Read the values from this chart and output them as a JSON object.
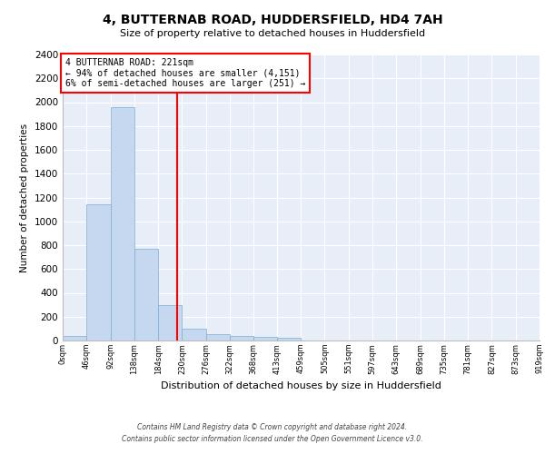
{
  "title": "4, BUTTERNAB ROAD, HUDDERSFIELD, HD4 7AH",
  "subtitle": "Size of property relative to detached houses in Huddersfield",
  "xlabel": "Distribution of detached houses by size in Huddersfield",
  "ylabel": "Number of detached properties",
  "bar_values": [
    35,
    1140,
    1960,
    770,
    300,
    100,
    50,
    40,
    30,
    20,
    0,
    0,
    0,
    0,
    0,
    0,
    0,
    0,
    0,
    0
  ],
  "bin_edges": [
    0,
    46,
    92,
    138,
    184,
    230,
    276,
    322,
    368,
    413,
    459,
    505,
    551,
    597,
    643,
    689,
    735,
    781,
    827,
    873,
    919
  ],
  "tick_labels": [
    "0sqm",
    "46sqm",
    "92sqm",
    "138sqm",
    "184sqm",
    "230sqm",
    "276sqm",
    "322sqm",
    "368sqm",
    "413sqm",
    "459sqm",
    "505sqm",
    "551sqm",
    "597sqm",
    "643sqm",
    "689sqm",
    "735sqm",
    "781sqm",
    "827sqm",
    "873sqm",
    "919sqm"
  ],
  "property_size": 221,
  "annotation_text": "4 BUTTERNAB ROAD: 221sqm\n← 94% of detached houses are smaller (4,151)\n6% of semi-detached houses are larger (251) →",
  "bar_color": "#c5d8f0",
  "bar_edge_color": "#7aafd4",
  "vline_color": "red",
  "annotation_box_color": "white",
  "annotation_box_edge": "red",
  "axes_background": "#e8eef8",
  "ylim": [
    0,
    2400
  ],
  "yticks": [
    0,
    200,
    400,
    600,
    800,
    1000,
    1200,
    1400,
    1600,
    1800,
    2000,
    2200,
    2400
  ],
  "footer_line1": "Contains HM Land Registry data © Crown copyright and database right 2024.",
  "footer_line2": "Contains public sector information licensed under the Open Government Licence v3.0."
}
